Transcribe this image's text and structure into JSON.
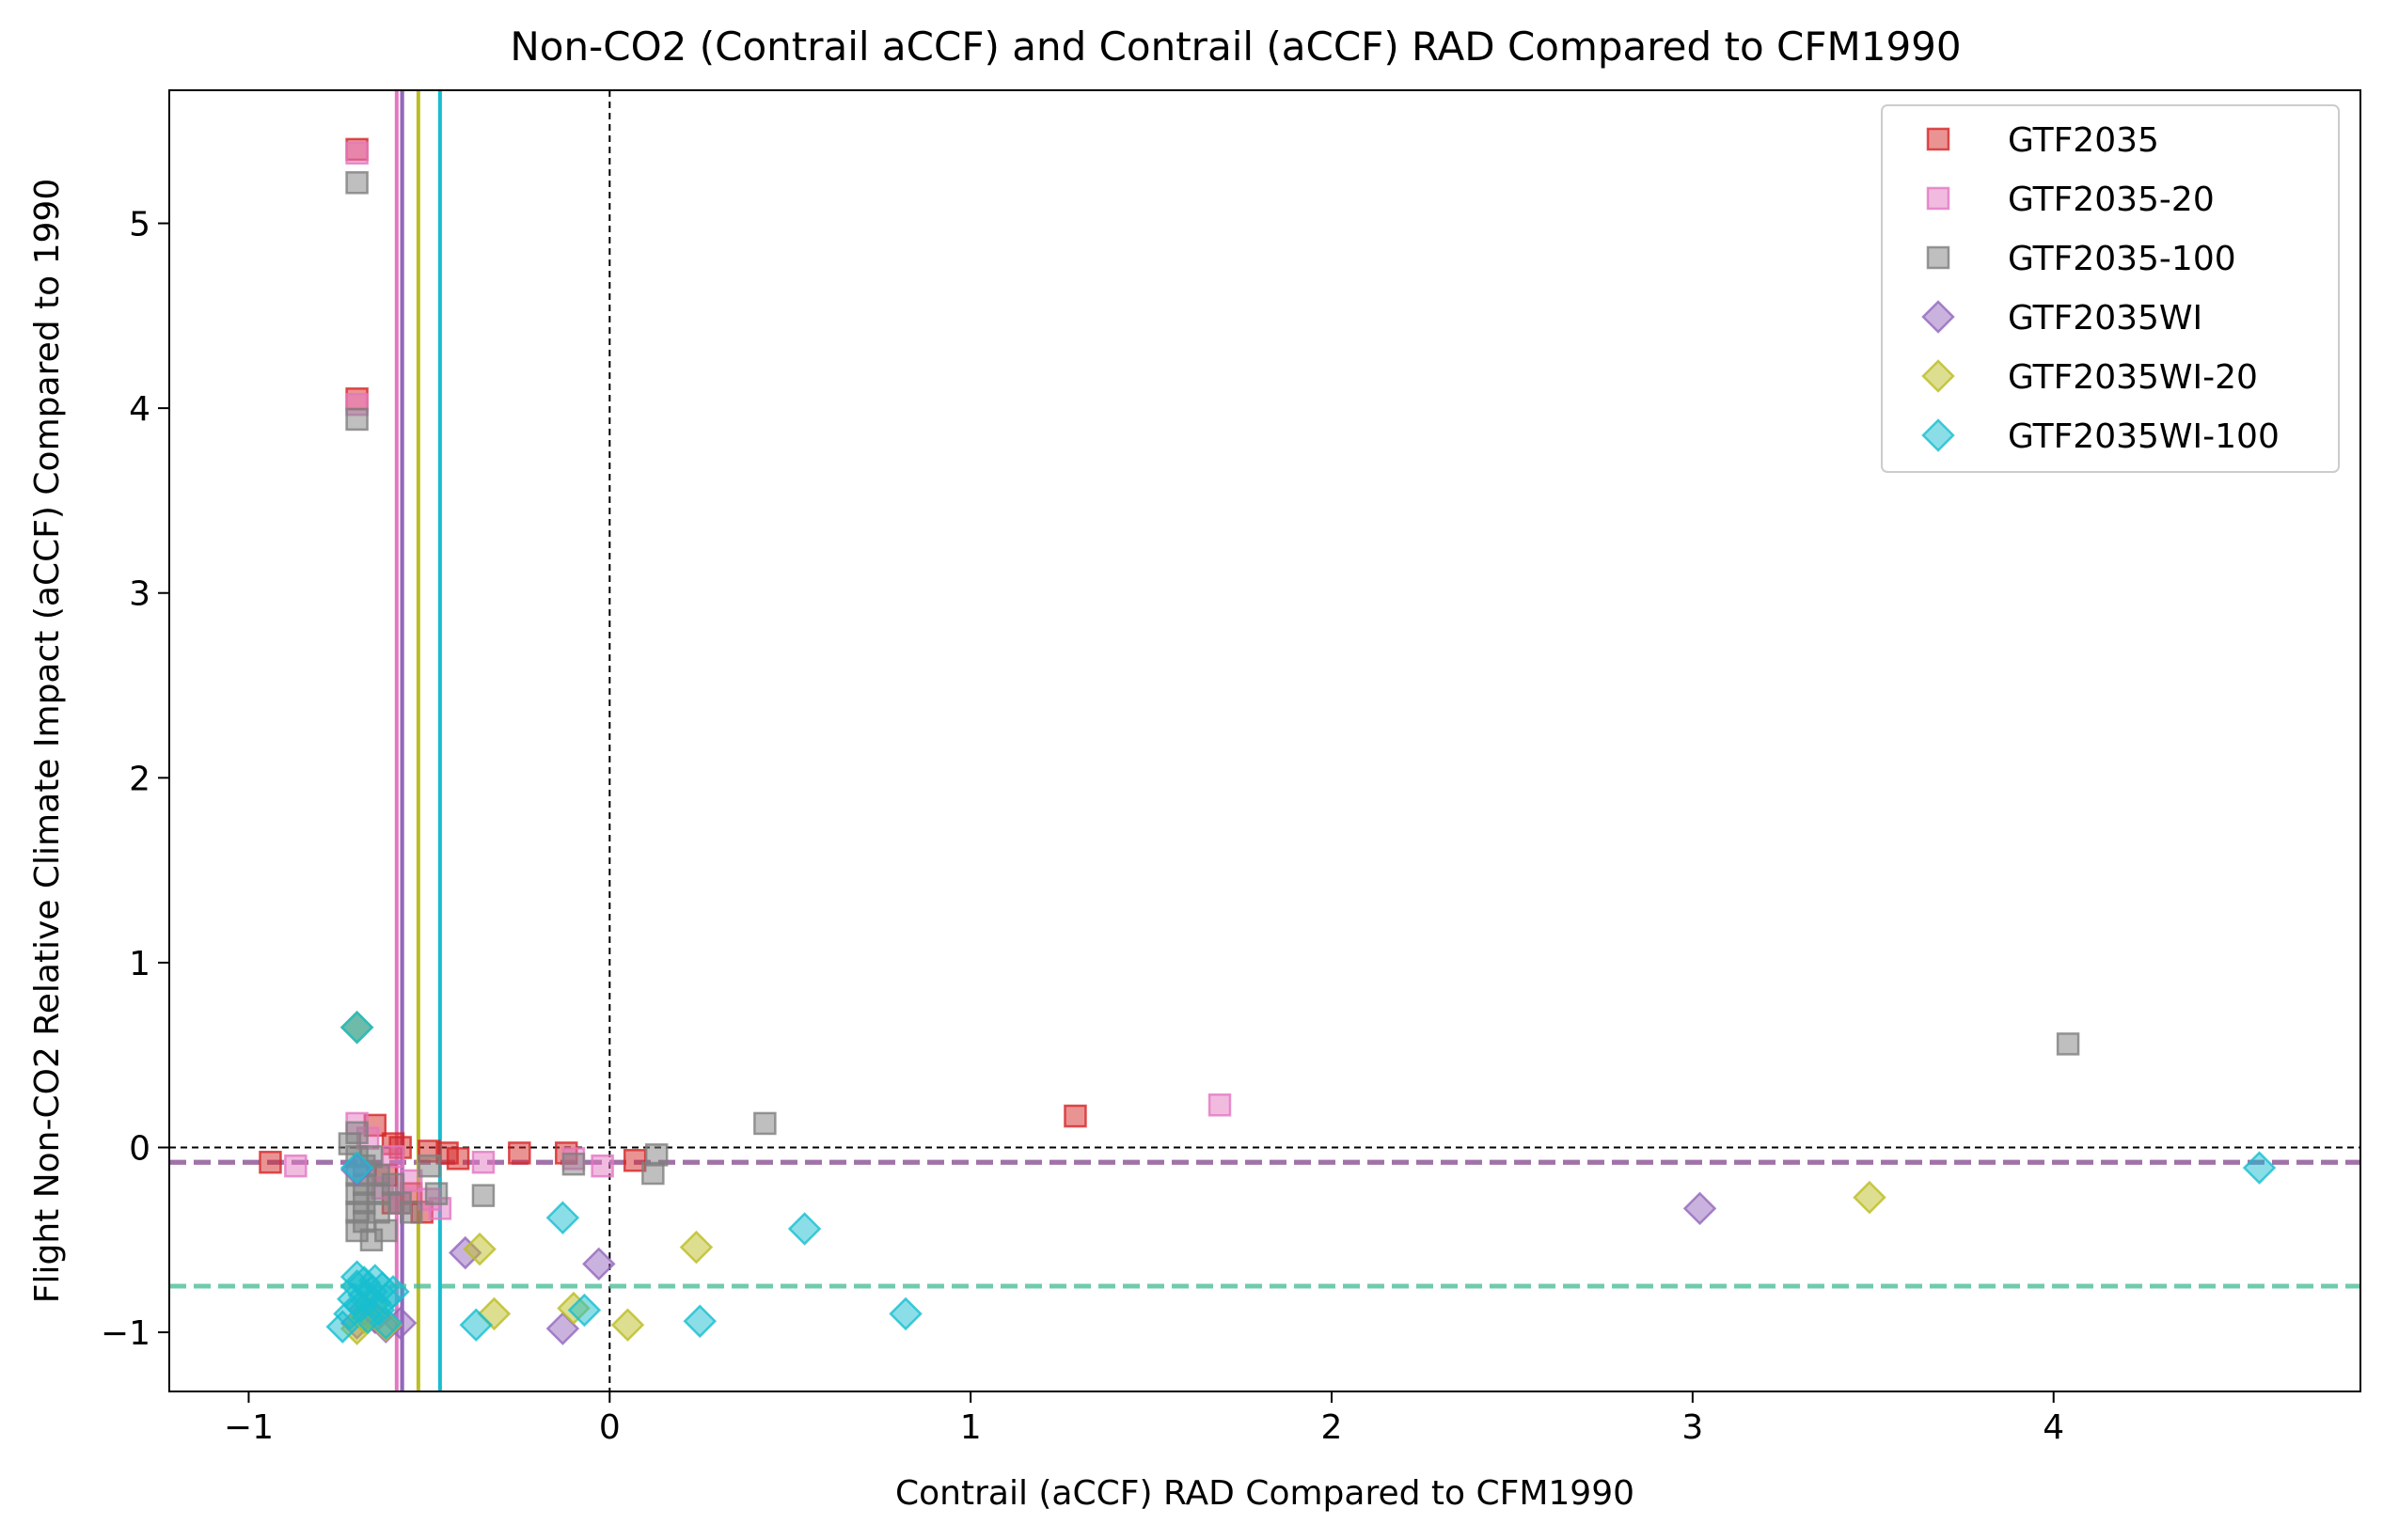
{
  "chart_data": {
    "type": "scatter",
    "title": "Non-CO2 (Contrail aCCF) and Contrail (aCCF) RAD Compared to CFM1990",
    "xlabel": "Contrail (aCCF) RAD Compared to CFM1990",
    "ylabel": "Flight Non-CO2 Relative Climate Impact (aCCF) Compared to 1990",
    "xlim": [
      -1.22,
      4.85
    ],
    "ylim": [
      -1.32,
      5.72
    ],
    "x_ticks": [
      -1,
      0,
      1,
      2,
      3,
      4
    ],
    "x_tick_labels": [
      "−1",
      "0",
      "1",
      "2",
      "3",
      "4"
    ],
    "y_ticks": [
      -1,
      0,
      1,
      2,
      3,
      4,
      5
    ],
    "y_tick_labels": [
      "−1",
      "0",
      "1",
      "2",
      "3",
      "4",
      "5"
    ],
    "grid": false,
    "legend_position": "top-right",
    "zero_lines": {
      "x": 0,
      "y": 0,
      "color": "#000000"
    },
    "series": [
      {
        "name": "GTF2035",
        "marker": "square",
        "color": "#d62728",
        "mean_x": -0.575,
        "mean_y": -0.08,
        "points": [
          [
            -0.7,
            5.4
          ],
          [
            -0.7,
            4.05
          ],
          [
            -0.94,
            -0.08
          ],
          [
            -0.65,
            0.12
          ],
          [
            -0.6,
            0.02
          ],
          [
            -0.58,
            0.0
          ],
          [
            -0.5,
            -0.02
          ],
          [
            -0.45,
            -0.03
          ],
          [
            -0.42,
            -0.06
          ],
          [
            -0.25,
            -0.03
          ],
          [
            -0.12,
            -0.03
          ],
          [
            0.07,
            -0.07
          ],
          [
            1.29,
            0.17
          ],
          [
            -0.62,
            -0.15
          ],
          [
            -0.55,
            -0.25
          ],
          [
            -0.52,
            -0.35
          ],
          [
            -0.6,
            -0.3
          ]
        ]
      },
      {
        "name": "GTF2035-20",
        "marker": "square",
        "color": "#e377c2",
        "mean_x": -0.59,
        "mean_y": -0.08,
        "points": [
          [
            -0.7,
            5.38
          ],
          [
            -0.7,
            4.02
          ],
          [
            -0.87,
            -0.1
          ],
          [
            -0.7,
            0.13
          ],
          [
            -0.67,
            0.05
          ],
          [
            -0.6,
            -0.05
          ],
          [
            -0.55,
            -0.18
          ],
          [
            -0.5,
            -0.28
          ],
          [
            -0.47,
            -0.33
          ],
          [
            -0.35,
            -0.08
          ],
          [
            -0.1,
            -0.06
          ],
          [
            -0.02,
            -0.1
          ],
          [
            1.69,
            0.23
          ],
          [
            -0.63,
            -0.22
          ],
          [
            -0.58,
            -0.3
          ]
        ]
      },
      {
        "name": "GTF2035-100",
        "marker": "square",
        "color": "#7f7f7f",
        "mean_x": -0.575,
        "mean_y": -0.08,
        "points": [
          [
            -0.7,
            5.22
          ],
          [
            -0.7,
            3.94
          ],
          [
            -0.72,
            0.02
          ],
          [
            -0.7,
            0.08
          ],
          [
            -0.7,
            -0.05
          ],
          [
            -0.7,
            -0.15
          ],
          [
            -0.7,
            -0.25
          ],
          [
            -0.7,
            -0.35
          ],
          [
            -0.7,
            -0.45
          ],
          [
            -0.68,
            -0.1
          ],
          [
            -0.68,
            -0.2
          ],
          [
            -0.68,
            -0.3
          ],
          [
            -0.68,
            -0.4
          ],
          [
            -0.66,
            -0.5
          ],
          [
            -0.66,
            -0.05
          ],
          [
            -0.64,
            -0.15
          ],
          [
            -0.64,
            -0.25
          ],
          [
            -0.64,
            -0.35
          ],
          [
            -0.62,
            -0.45
          ],
          [
            -0.6,
            -0.2
          ],
          [
            -0.58,
            -0.3
          ],
          [
            -0.55,
            -0.35
          ],
          [
            -0.5,
            -0.1
          ],
          [
            -0.48,
            -0.25
          ],
          [
            -0.35,
            -0.26
          ],
          [
            -0.1,
            -0.09
          ],
          [
            0.12,
            -0.14
          ],
          [
            0.13,
            -0.04
          ],
          [
            0.43,
            0.13
          ],
          [
            4.04,
            0.56
          ]
        ]
      },
      {
        "name": "GTF2035WI",
        "marker": "diamond",
        "color": "#9467bd",
        "mean_x": -0.575,
        "mean_y": -0.08,
        "points": [
          [
            -0.7,
            0.65
          ],
          [
            -0.7,
            -0.12
          ],
          [
            -0.7,
            -0.95
          ],
          [
            -0.68,
            -0.88
          ],
          [
            -0.65,
            -0.92
          ],
          [
            -0.62,
            -0.97
          ],
          [
            -0.58,
            -0.95
          ],
          [
            -0.4,
            -0.57
          ],
          [
            -0.13,
            -0.98
          ],
          [
            -0.03,
            -0.63
          ],
          [
            3.02,
            -0.33
          ]
        ]
      },
      {
        "name": "GTF2035WI-20",
        "marker": "diamond",
        "color": "#bcbd22",
        "mean_x": -0.53,
        "mean_y": -0.75,
        "points": [
          [
            -0.7,
            0.65
          ],
          [
            -0.7,
            -0.98
          ],
          [
            -0.68,
            -0.92
          ],
          [
            -0.66,
            -0.85
          ],
          [
            -0.62,
            -0.96
          ],
          [
            -0.36,
            -0.55
          ],
          [
            -0.32,
            -0.9
          ],
          [
            -0.1,
            -0.87
          ],
          [
            0.05,
            -0.96
          ],
          [
            0.24,
            -0.54
          ],
          [
            3.49,
            -0.27
          ]
        ]
      },
      {
        "name": "GTF2035WI-100",
        "marker": "diamond",
        "color": "#17becf",
        "mean_x": -0.47,
        "mean_y": -0.75,
        "points": [
          [
            -0.7,
            0.65
          ],
          [
            -0.7,
            -0.11
          ],
          [
            -0.74,
            -0.97
          ],
          [
            -0.72,
            -0.9
          ],
          [
            -0.71,
            -0.82
          ],
          [
            -0.7,
            -0.75
          ],
          [
            -0.7,
            -0.7
          ],
          [
            -0.69,
            -0.86
          ],
          [
            -0.68,
            -0.8
          ],
          [
            -0.68,
            -0.73
          ],
          [
            -0.67,
            -0.92
          ],
          [
            -0.66,
            -0.78
          ],
          [
            -0.65,
            -0.84
          ],
          [
            -0.65,
            -0.72
          ],
          [
            -0.64,
            -0.88
          ],
          [
            -0.63,
            -0.76
          ],
          [
            -0.62,
            -0.95
          ],
          [
            -0.62,
            -0.82
          ],
          [
            -0.6,
            -0.78
          ],
          [
            -0.37,
            -0.96
          ],
          [
            -0.13,
            -0.38
          ],
          [
            -0.07,
            -0.88
          ],
          [
            0.25,
            -0.94
          ],
          [
            0.54,
            -0.44
          ],
          [
            0.82,
            -0.9
          ],
          [
            4.57,
            -0.11
          ]
        ]
      }
    ]
  }
}
